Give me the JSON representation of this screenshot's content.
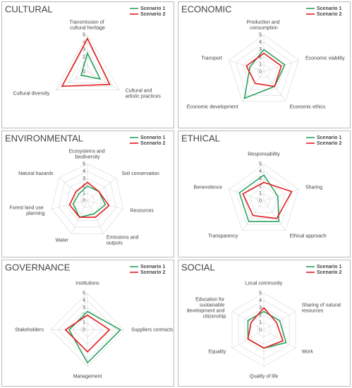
{
  "chart_data": [
    {
      "type": "radar",
      "title": "CULTURAL",
      "categories": [
        "Transmission of cultural heritage",
        "Cultural and artistic practices",
        "Cultural diversity"
      ],
      "series": [
        {
          "name": "Scenario 1",
          "color": "#2ca25f",
          "values": [
            2.5,
            2,
            1
          ]
        },
        {
          "name": "Scenario 2",
          "color": "#e31a1c",
          "values": [
            4.5,
            3.5,
            4
          ]
        }
      ],
      "rlim": [
        0,
        5
      ],
      "rticks": [
        0,
        1,
        2,
        3,
        4,
        5
      ],
      "legend": "top-right"
    },
    {
      "type": "radar",
      "title": "ECONOMIC",
      "categories": [
        "Production and consumption",
        "Economic viability",
        "Economic ethics",
        "Economic development",
        "Transport"
      ],
      "series": [
        {
          "name": "Scenario 1",
          "color": "#2ca25f",
          "values": [
            3,
            3,
            2.5,
            4.5,
            2
          ]
        },
        {
          "name": "Scenario 2",
          "color": "#e31a1c",
          "values": [
            2.5,
            2.5,
            2.5,
            2,
            2.5
          ]
        }
      ],
      "rlim": [
        0,
        5
      ],
      "rticks": [
        0,
        1,
        2,
        3,
        4,
        5
      ],
      "legend": "top-right"
    },
    {
      "type": "radar",
      "title": "ENVIRONMENTAL",
      "categories": [
        "Ecosystems and biodiversity",
        "Soil conservation",
        "Resources",
        "Emissions and outputs",
        "Water",
        "Forest land use planning",
        "Natural hazards"
      ],
      "series": [
        {
          "name": "Scenario 1",
          "color": "#2ca25f",
          "values": [
            2,
            2,
            2.5,
            2,
            2.5,
            2,
            1.5
          ]
        },
        {
          "name": "Scenario 2",
          "color": "#e31a1c",
          "values": [
            2.5,
            2,
            3,
            2.5,
            2.5,
            2.5,
            2
          ]
        }
      ],
      "rlim": [
        0,
        5
      ],
      "rticks": [
        0,
        1,
        2,
        3,
        4,
        5
      ],
      "legend": "top-right"
    },
    {
      "type": "radar",
      "title": "ETHICAL",
      "categories": [
        "Responsability",
        "Sharing",
        "Ethical approach",
        "Transparency",
        "Benevolence"
      ],
      "series": [
        {
          "name": "Scenario 1",
          "color": "#2ca25f",
          "values": [
            3.5,
            2,
            3.5,
            3.5,
            3.5
          ]
        },
        {
          "name": "Scenario 2",
          "color": "#e31a1c",
          "values": [
            2.5,
            4,
            3,
            2.5,
            3
          ]
        }
      ],
      "rlim": [
        0,
        5
      ],
      "rticks": [
        0,
        1,
        2,
        3,
        4,
        5
      ],
      "legend": "top-right"
    },
    {
      "type": "radar",
      "title": "GOVERNANCE",
      "categories": [
        "Institutions",
        "Suppliers contracts",
        "Management",
        "Stakeholders"
      ],
      "series": [
        {
          "name": "Scenario 1",
          "color": "#2ca25f",
          "values": [
            2.5,
            4.5,
            4.5,
            2.5
          ]
        },
        {
          "name": "Scenario 2",
          "color": "#e31a1c",
          "values": [
            2,
            3,
            3,
            3
          ]
        }
      ],
      "rlim": [
        0,
        5
      ],
      "rticks": [
        0,
        1,
        2,
        3,
        4,
        5
      ],
      "legend": "top-right"
    },
    {
      "type": "radar",
      "title": "SOCIAL",
      "categories": [
        "Local community",
        "Sharing of natural resources",
        "Work",
        "Quality of life",
        "Equality",
        "Education for sustainable development and citizenship"
      ],
      "series": [
        {
          "name": "Scenario 1",
          "color": "#2ca25f",
          "values": [
            2.5,
            2.5,
            3.5,
            2.5,
            2.5,
            2.5
          ]
        },
        {
          "name": "Scenario 2",
          "color": "#e31a1c",
          "values": [
            3,
            2,
            3,
            2.5,
            2.5,
            2
          ]
        }
      ],
      "rlim": [
        0,
        5
      ],
      "rticks": [
        0,
        1,
        2,
        3,
        4,
        5
      ],
      "legend": "top-right"
    }
  ]
}
